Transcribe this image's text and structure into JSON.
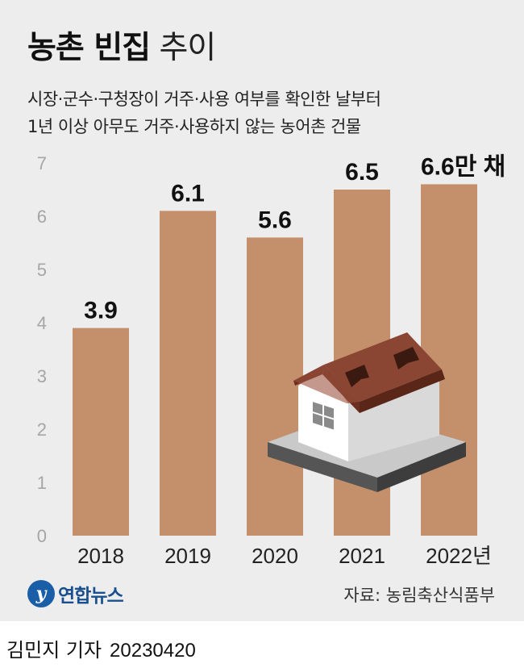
{
  "header": {
    "title_bold": "농촌 빈집",
    "title_light": "추이",
    "subtitle_lines": [
      "시장·군수·구청장이 거주·사용 여부를 확인한 날부터",
      "1년 이상 아무도 거주·사용하지 않는 농어촌 건물"
    ]
  },
  "chart_data": {
    "type": "bar",
    "categories": [
      "2018",
      "2019",
      "2020",
      "2021",
      "2022년"
    ],
    "values": [
      3.9,
      6.1,
      5.6,
      6.5,
      6.6
    ],
    "value_labels": [
      "3.9",
      "6.1",
      "5.6",
      "6.5",
      "6.6만 채"
    ],
    "y_ticks": [
      "0",
      "1",
      "2",
      "3",
      "4",
      "5",
      "6",
      "7"
    ],
    "ylim": [
      0,
      7
    ],
    "grid": false,
    "bar_color": "#c4906b",
    "tick_color": "#a6a6a6"
  },
  "illustration": {
    "icon": "house-icon"
  },
  "footer": {
    "logo_text": "연합뉴스",
    "source": "자료: 농림축산식품부"
  },
  "credit": {
    "reporter": "김민지 기자",
    "date": "20230420"
  }
}
